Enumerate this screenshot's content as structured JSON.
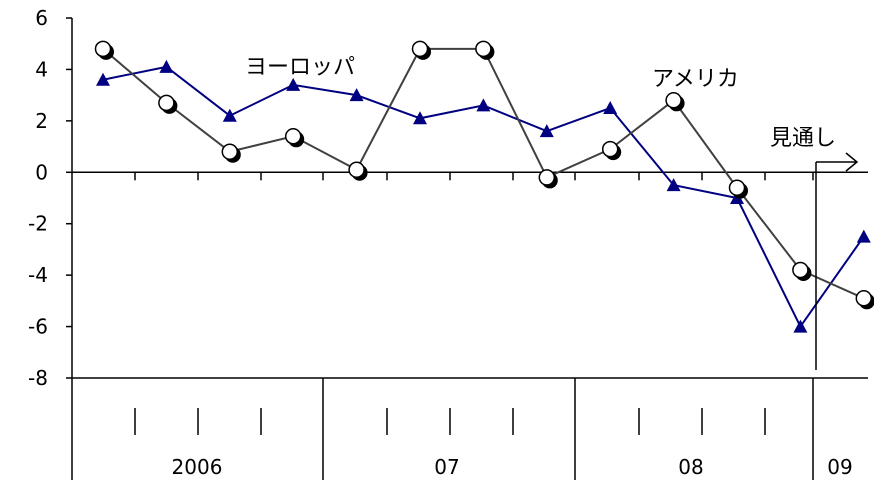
{
  "chart_data": {
    "type": "line",
    "ylim": [
      -8,
      6
    ],
    "yticks": [
      6,
      4,
      2,
      0,
      -2,
      -4,
      -6,
      -8
    ],
    "x": [
      0,
      1,
      2,
      3,
      4,
      5,
      6,
      7,
      8,
      9,
      10,
      11,
      12
    ],
    "series": [
      {
        "name": "ヨーロッパ",
        "color": "#000080",
        "marker": "triangle",
        "values": [
          3.6,
          4.1,
          2.2,
          3.4,
          3.0,
          2.1,
          2.6,
          1.6,
          2.5,
          -0.5,
          -1.0,
          -6.0,
          -2.5
        ]
      },
      {
        "name": "アメリカ",
        "color": "#404040",
        "marker": "circle",
        "values": [
          4.8,
          2.7,
          0.8,
          1.4,
          0.1,
          4.8,
          4.8,
          -0.2,
          0.9,
          2.8,
          -0.6,
          -3.8,
          -4.9
        ]
      }
    ],
    "year_labels": [
      "2006",
      "07",
      "08",
      "09"
    ],
    "annotation": "見通し"
  }
}
